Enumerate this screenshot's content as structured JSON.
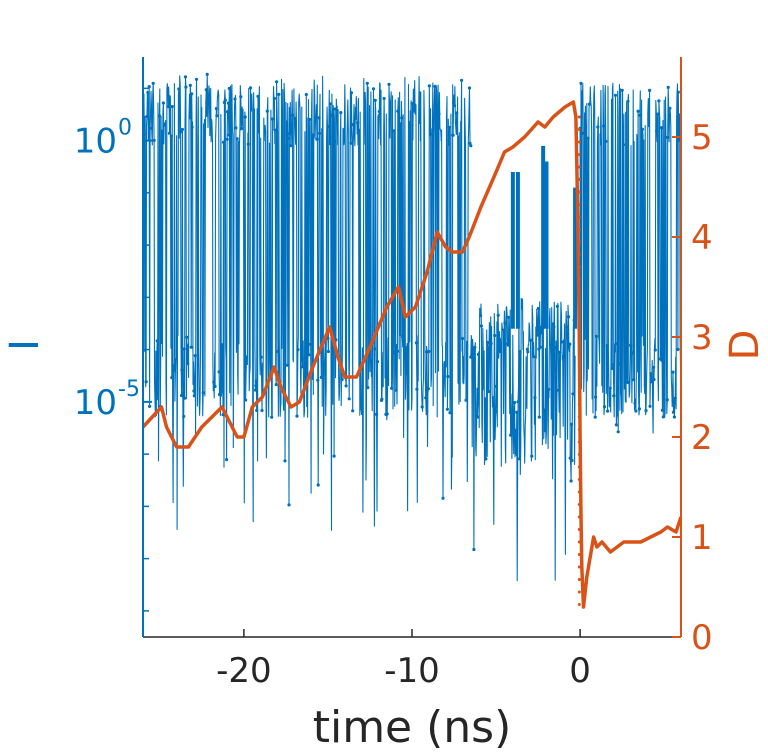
{
  "chart_data": {
    "type": "line",
    "title": "",
    "xlabel": "time (ns)",
    "ylabel_left": "I",
    "ylabel_right": "D",
    "xlim": [
      -26,
      6
    ],
    "x_ticks": [
      -20,
      -10,
      0
    ],
    "x_tick_labels": [
      "-20",
      "-10",
      "0"
    ],
    "left_axis": {
      "scale": "log",
      "ylim_log10": [
        -9.5,
        1.6
      ],
      "labeled_ticks_log10": [
        0,
        -5
      ],
      "minor_ticks_log10": [
        1,
        -1,
        -2,
        -3,
        -4,
        -6,
        -7,
        -8,
        -9
      ],
      "tick_label_base": "10",
      "tick_label_exponents": [
        "0",
        "-5"
      ],
      "color": "#0072BD"
    },
    "right_axis": {
      "scale": "linear",
      "ylim": [
        0,
        5.8
      ],
      "ticks": [
        0,
        1,
        2,
        3,
        4,
        5
      ],
      "tick_labels": [
        "0",
        "1",
        "2",
        "3",
        "4",
        "5"
      ],
      "color": "#D95319"
    },
    "series": [
      {
        "axis": "left",
        "color": "#0072BD",
        "style": "noisy-switching-line-with-dots",
        "segments": [
          {
            "x_start": -26,
            "x_end": -6.5,
            "high_log10": 0.5,
            "low_log10": -4.5,
            "high_peak_log10": 1.3,
            "low_trough_log10": -7.5
          },
          {
            "x_start": -6.5,
            "x_end": -0.3,
            "high_log10": -3.6,
            "low_log10": -5.5,
            "low_trough_log10": -8.5,
            "spikes": [
              [
                -4,
                -0.6
              ],
              [
                -3.7,
                -0.6
              ],
              [
                -2.2,
                -0.1
              ],
              [
                -2.0,
                -0.4
              ],
              [
                -0.3,
                -0.9
              ]
            ]
          },
          {
            "x_start": 0,
            "x_end": 6,
            "high_log10": 0.5,
            "low_log10": -4.5,
            "high_peak_log10": 1.3,
            "low_trough_log10": -5.6
          }
        ]
      },
      {
        "axis": "right",
        "color": "#D95319",
        "style": "line",
        "x": [
          -26,
          -24.9,
          -24.6,
          -24.0,
          -23.3,
          -22.5,
          -21.3,
          -20.4,
          -20.0,
          -19.5,
          -18.9,
          -18.2,
          -17.8,
          -17.2,
          -16.7,
          -15.9,
          -14.9,
          -14.4,
          -14.0,
          -13.3,
          -12.5,
          -11.5,
          -10.8,
          -10.4,
          -9.8,
          -9.1,
          -8.5,
          -8.0,
          -7.6,
          -7.0,
          -6.6,
          -5.9,
          -5.0,
          -4.5,
          -4.0,
          -3.3,
          -2.5,
          -2.1,
          -1.6,
          -0.9,
          -0.4,
          -0.25,
          -0.15,
          -0.05,
          0.0,
          0.05,
          0.1,
          0.2,
          0.4,
          0.8,
          1.0,
          1.3,
          1.8,
          2.2,
          2.6,
          3.0,
          3.6,
          4.2,
          4.8,
          5.2,
          5.7,
          6.0
        ],
        "y": [
          2.1,
          2.3,
          2.1,
          1.9,
          1.9,
          2.1,
          2.3,
          2.0,
          2.0,
          2.3,
          2.4,
          2.7,
          2.5,
          2.3,
          2.35,
          2.7,
          3.1,
          2.8,
          2.6,
          2.6,
          2.9,
          3.3,
          3.5,
          3.2,
          3.3,
          3.65,
          4.05,
          3.9,
          3.85,
          3.85,
          4.0,
          4.3,
          4.65,
          4.85,
          4.9,
          5.0,
          5.15,
          5.1,
          5.2,
          5.3,
          5.35,
          5.2,
          4.3,
          3.0,
          2.0,
          1.2,
          0.7,
          0.3,
          0.6,
          1.0,
          0.9,
          0.95,
          0.85,
          0.9,
          0.95,
          0.95,
          0.95,
          1.0,
          1.05,
          1.1,
          1.05,
          1.2
        ]
      }
    ],
    "grid": false,
    "legend": "none"
  }
}
